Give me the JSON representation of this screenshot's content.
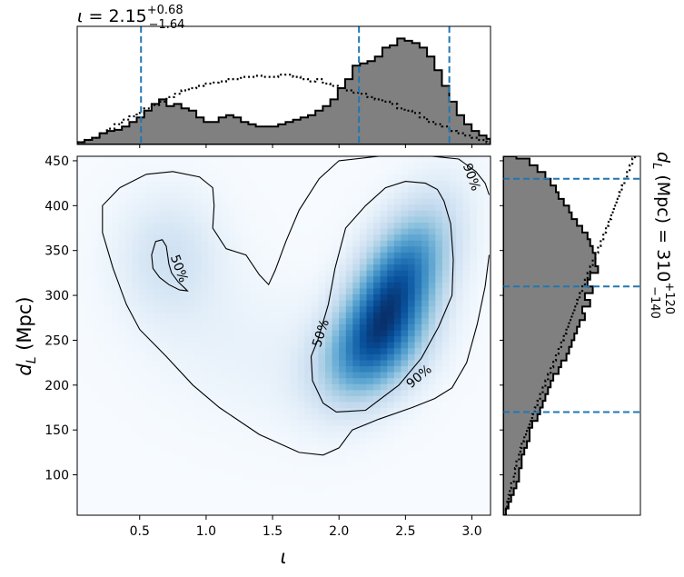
{
  "chart_data": {
    "type": "corner",
    "title": {
      "variable": "ι",
      "median": "2.15",
      "upper": "+0.68",
      "lower": "−1.64"
    },
    "side_title": {
      "variable": "d",
      "sub": "L",
      "unit": "(Mpc)",
      "median": "310",
      "upper": "+120",
      "lower": "−140"
    },
    "xlabel": "ι",
    "ylabel": {
      "variable": "d",
      "sub": "L",
      "unit": "(Mpc)"
    },
    "xlim": [
      0.03,
      3.14
    ],
    "ylim": [
      55,
      455
    ],
    "xticks": [
      0.5,
      1.0,
      1.5,
      2.0,
      2.5,
      3.0
    ],
    "xtick_labels": [
      "0.5",
      "1.0",
      "1.5",
      "2.0",
      "2.5",
      "3.0"
    ],
    "yticks": [
      100,
      150,
      200,
      250,
      300,
      350,
      400,
      450
    ],
    "ytick_labels": [
      "100",
      "150",
      "200",
      "250",
      "300",
      "350",
      "400",
      "450"
    ],
    "colormap": "Blues",
    "colors": {
      "hist_fill": "#808080",
      "hist_edge": "#000000",
      "quantile_line": "#1f77b4"
    },
    "iota_quantiles": [
      0.51,
      2.15,
      2.83
    ],
    "dl_quantiles": [
      170,
      310,
      430
    ],
    "contour_labels": [
      {
        "text": "50%",
        "x": 0.8,
        "y": 330,
        "angle": 70
      },
      {
        "text": "50%",
        "x": 1.86,
        "y": 258,
        "angle": -72
      },
      {
        "text": "90%",
        "x": 2.6,
        "y": 210,
        "angle": -40
      },
      {
        "text": "90%",
        "x": 3.0,
        "y": 432,
        "angle": 70
      }
    ],
    "contours": {
      "c50_left": [
        [
          0.62,
          360
        ],
        [
          0.67,
          362
        ],
        [
          0.7,
          355
        ],
        [
          0.71,
          345
        ],
        [
          0.72,
          335
        ],
        [
          0.74,
          325
        ],
        [
          0.79,
          315
        ],
        [
          0.84,
          308
        ],
        [
          0.86,
          305
        ],
        [
          0.8,
          306
        ],
        [
          0.72,
          312
        ],
        [
          0.65,
          320
        ],
        [
          0.6,
          330
        ],
        [
          0.59,
          345
        ],
        [
          0.62,
          360
        ]
      ],
      "c50_right": [
        [
          1.84,
          250
        ],
        [
          1.79,
          232
        ],
        [
          1.8,
          205
        ],
        [
          1.88,
          180
        ],
        [
          1.98,
          170
        ],
        [
          2.2,
          172
        ],
        [
          2.45,
          200
        ],
        [
          2.62,
          230
        ],
        [
          2.75,
          265
        ],
        [
          2.85,
          300
        ],
        [
          2.86,
          340
        ],
        [
          2.84,
          380
        ],
        [
          2.79,
          405
        ],
        [
          2.74,
          418
        ],
        [
          2.65,
          425
        ],
        [
          2.5,
          427
        ],
        [
          2.35,
          420
        ],
        [
          2.2,
          400
        ],
        [
          2.05,
          375
        ],
        [
          1.97,
          330
        ],
        [
          1.92,
          290
        ],
        [
          1.84,
          250
        ]
      ],
      "c90": [
        [
          0.35,
          420
        ],
        [
          0.55,
          435
        ],
        [
          0.75,
          438
        ],
        [
          0.95,
          432
        ],
        [
          1.05,
          420
        ],
        [
          1.06,
          400
        ],
        [
          1.05,
          375
        ],
        [
          1.15,
          352
        ],
        [
          1.3,
          345
        ],
        [
          1.4,
          323
        ],
        [
          1.47,
          312
        ],
        [
          1.52,
          328
        ],
        [
          1.6,
          360
        ],
        [
          1.7,
          395
        ],
        [
          1.85,
          430
        ],
        [
          2.0,
          450
        ],
        [
          2.3,
          455
        ],
        [
          2.7,
          455
        ],
        [
          2.9,
          452
        ],
        [
          3.03,
          438
        ],
        [
          3.1,
          425
        ],
        [
          3.13,
          412
        ]
      ],
      "c90_bottom": [
        [
          3.13,
          345
        ],
        [
          3.1,
          310
        ],
        [
          3.04,
          268
        ],
        [
          2.96,
          225
        ],
        [
          2.85,
          197
        ],
        [
          2.72,
          185
        ],
        [
          2.55,
          175
        ],
        [
          2.3,
          162
        ],
        [
          2.1,
          150
        ],
        [
          2.0,
          130
        ],
        [
          1.88,
          122
        ],
        [
          1.7,
          125
        ],
        [
          1.4,
          145
        ],
        [
          1.1,
          175
        ],
        [
          0.9,
          200
        ],
        [
          0.7,
          232
        ],
        [
          0.5,
          262
        ],
        [
          0.4,
          290
        ],
        [
          0.3,
          330
        ],
        [
          0.22,
          370
        ],
        [
          0.22,
          400
        ],
        [
          0.35,
          420
        ]
      ]
    },
    "iota_hist": {
      "bin_edges": [
        0.03,
        0.086,
        0.142,
        0.198,
        0.254,
        0.31,
        0.366,
        0.422,
        0.478,
        0.534,
        0.59,
        0.646,
        0.702,
        0.758,
        0.814,
        0.87,
        0.926,
        0.982,
        1.038,
        1.094,
        1.15,
        1.206,
        1.262,
        1.318,
        1.374,
        1.43,
        1.486,
        1.542,
        1.598,
        1.654,
        1.71,
        1.766,
        1.822,
        1.878,
        1.934,
        1.99,
        2.046,
        2.102,
        2.158,
        2.214,
        2.27,
        2.326,
        2.382,
        2.438,
        2.494,
        2.55,
        2.606,
        2.662,
        2.718,
        2.774,
        2.83,
        2.886,
        2.942,
        2.998,
        3.054,
        3.11,
        3.14
      ],
      "posterior": [
        0.02,
        0.04,
        0.06,
        0.1,
        0.12,
        0.13,
        0.16,
        0.2,
        0.24,
        0.3,
        0.36,
        0.4,
        0.34,
        0.36,
        0.32,
        0.3,
        0.24,
        0.2,
        0.2,
        0.24,
        0.26,
        0.24,
        0.2,
        0.18,
        0.16,
        0.16,
        0.16,
        0.18,
        0.2,
        0.22,
        0.24,
        0.26,
        0.3,
        0.34,
        0.4,
        0.5,
        0.58,
        0.7,
        0.72,
        0.74,
        0.78,
        0.86,
        0.88,
        0.94,
        0.92,
        0.9,
        0.86,
        0.78,
        0.66,
        0.52,
        0.38,
        0.26,
        0.18,
        0.12,
        0.08,
        0.05
      ],
      "prior": [
        0.02,
        0.04,
        0.06,
        0.1,
        0.14,
        0.18,
        0.22,
        0.25,
        0.28,
        0.32,
        0.35,
        0.38,
        0.42,
        0.45,
        0.48,
        0.5,
        0.52,
        0.54,
        0.55,
        0.56,
        0.58,
        0.58,
        0.6,
        0.6,
        0.61,
        0.6,
        0.6,
        0.62,
        0.62,
        0.6,
        0.58,
        0.56,
        0.58,
        0.54,
        0.52,
        0.5,
        0.48,
        0.46,
        0.45,
        0.42,
        0.4,
        0.38,
        0.36,
        0.32,
        0.3,
        0.28,
        0.24,
        0.2,
        0.18,
        0.16,
        0.12,
        0.1,
        0.08,
        0.06,
        0.04,
        0.02
      ]
    },
    "dl_hist": {
      "bin_edges": [
        55,
        62.5,
        70,
        77.5,
        85,
        92.5,
        100,
        107.5,
        115,
        122.5,
        130,
        137.5,
        145,
        152.5,
        160,
        167.5,
        175,
        182.5,
        190,
        197.5,
        205,
        212.5,
        220,
        227.5,
        235,
        242.5,
        250,
        257.5,
        265,
        272.5,
        280,
        287.5,
        295,
        302.5,
        310,
        317.5,
        325,
        332.5,
        340,
        347.5,
        355,
        362.5,
        370,
        377.5,
        385,
        392.5,
        400,
        407.5,
        415,
        422.5,
        430,
        437.5,
        445,
        452.5,
        455
      ],
      "posterior": [
        0.02,
        0.04,
        0.06,
        0.08,
        0.1,
        0.12,
        0.12,
        0.14,
        0.14,
        0.16,
        0.18,
        0.2,
        0.2,
        0.22,
        0.26,
        0.28,
        0.3,
        0.32,
        0.34,
        0.36,
        0.38,
        0.42,
        0.44,
        0.48,
        0.5,
        0.52,
        0.54,
        0.56,
        0.58,
        0.62,
        0.6,
        0.66,
        0.62,
        0.68,
        0.64,
        0.66,
        0.72,
        0.7,
        0.7,
        0.68,
        0.66,
        0.64,
        0.6,
        0.56,
        0.52,
        0.5,
        0.46,
        0.42,
        0.4,
        0.36,
        0.32,
        0.26,
        0.2,
        0.1
      ],
      "prior": [
        0.02,
        0.03,
        0.04,
        0.05,
        0.06,
        0.08,
        0.09,
        0.1,
        0.12,
        0.13,
        0.14,
        0.16,
        0.18,
        0.2,
        0.22,
        0.24,
        0.26,
        0.28,
        0.3,
        0.32,
        0.34,
        0.36,
        0.38,
        0.4,
        0.42,
        0.44,
        0.46,
        0.48,
        0.5,
        0.52,
        0.54,
        0.56,
        0.58,
        0.6,
        0.62,
        0.64,
        0.66,
        0.68,
        0.7,
        0.72,
        0.74,
        0.76,
        0.78,
        0.8,
        0.82,
        0.84,
        0.86,
        0.88,
        0.9,
        0.92,
        0.94,
        0.96,
        0.98,
        1.0
      ]
    },
    "density_peaks": [
      {
        "x": 2.42,
        "y": 305,
        "sx": 0.28,
        "sy": 62,
        "weight": 1.0,
        "rho": 0.55
      },
      {
        "x": 2.25,
        "y": 235,
        "sx": 0.3,
        "sy": 40,
        "weight": 0.45,
        "rho": 0.3
      },
      {
        "x": 0.72,
        "y": 345,
        "sx": 0.28,
        "sy": 50,
        "weight": 0.22,
        "rho": 0.0
      },
      {
        "x": 1.3,
        "y": 240,
        "sx": 0.55,
        "sy": 60,
        "weight": 0.08,
        "rho": -0.2
      }
    ]
  }
}
